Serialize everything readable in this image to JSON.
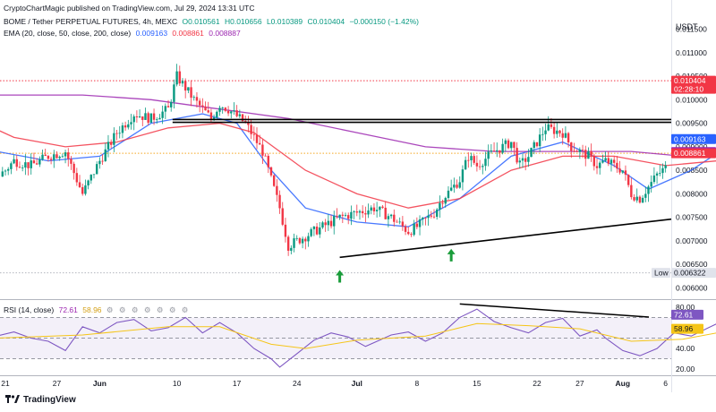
{
  "header": {
    "publisher": "CryptoChartMagic published on TradingView.com, Jul 29, 2024 13:31 UTC",
    "symbol": "BOME / Tether PERPETUAL FUTURES, 4h, MEXC",
    "ohlc": {
      "o": "O0.010561",
      "h": "H0.010656",
      "l": "L0.010389",
      "c": "C0.010404",
      "chg": "−0.000150 (−1.42%)"
    },
    "ema_label": "EMA (20, close, 50, close, 200, close)",
    "ema_values": [
      "0.009163",
      "0.008861",
      "0.008887"
    ],
    "rsi_label": "RSI (14, close)",
    "rsi_values": [
      "72.61",
      "58.96"
    ]
  },
  "footer": {
    "brand": "TradingView"
  },
  "chart_data": {
    "type": "candlestick",
    "symbol": "BOME/USDT",
    "timeframe": "4h",
    "currency": "USDT",
    "ylim": [
      0.0058,
      0.0117
    ],
    "y_ticks": [
      "0.011500",
      "0.011000",
      "0.010500",
      "0.010000",
      "0.009500",
      "0.009000",
      "0.008500",
      "0.008000",
      "0.007500",
      "0.007000",
      "0.006500",
      "0.006000"
    ],
    "x_ticks": [
      {
        "label": "21",
        "day": 21
      },
      {
        "label": "27",
        "day": 27
      },
      {
        "label": "Jun",
        "day": 32
      },
      {
        "label": "10",
        "day": 41
      },
      {
        "label": "17",
        "day": 48
      },
      {
        "label": "24",
        "day": 55
      },
      {
        "label": "Jul",
        "day": 62
      },
      {
        "label": "8",
        "day": 69
      },
      {
        "label": "15",
        "day": 76
      },
      {
        "label": "22",
        "day": 83
      },
      {
        "label": "27",
        "day": 88
      },
      {
        "label": "Aug",
        "day": 93
      },
      {
        "label": "6",
        "day": 98
      }
    ],
    "price_path": [
      [
        -14,
        0.011
      ],
      [
        -9,
        0.0106
      ],
      [
        -5,
        0.0099
      ],
      [
        -3,
        0.0095
      ],
      [
        0,
        0.0091
      ],
      [
        1,
        0.0093
      ],
      [
        3,
        0.0088
      ],
      [
        5,
        0.0089
      ],
      [
        6,
        0.009
      ],
      [
        7,
        0.0092
      ],
      [
        9,
        0.0102
      ],
      [
        11,
        0.0098
      ],
      [
        12,
        0.0104
      ],
      [
        14,
        0.0103
      ],
      [
        16,
        0.0095
      ],
      [
        18,
        0.0087
      ],
      [
        19,
        0.0082
      ],
      [
        21,
        0.0085
      ],
      [
        22,
        0.0087
      ],
      [
        24,
        0.0086
      ],
      [
        26,
        0.0088
      ],
      [
        28,
        0.0089
      ],
      [
        30,
        0.008
      ],
      [
        32,
        0.0087
      ],
      [
        34,
        0.0093
      ],
      [
        36,
        0.0097
      ],
      [
        38,
        0.0096
      ],
      [
        40,
        0.0098
      ],
      [
        41,
        0.0105
      ],
      [
        43,
        0.01
      ],
      [
        45,
        0.0096
      ],
      [
        46,
        0.0099
      ],
      [
        47,
        0.0098
      ],
      [
        49,
        0.0095
      ],
      [
        51,
        0.0089
      ],
      [
        52,
        0.0083
      ],
      [
        53,
        0.0077
      ],
      [
        54,
        0.0069
      ],
      [
        56,
        0.0071
      ],
      [
        58,
        0.0073
      ],
      [
        60,
        0.0075
      ],
      [
        62,
        0.0076
      ],
      [
        64,
        0.0077
      ],
      [
        66,
        0.0075
      ],
      [
        68,
        0.0072
      ],
      [
        69,
        0.0073
      ],
      [
        71,
        0.0076
      ],
      [
        72,
        0.0079
      ],
      [
        74,
        0.0083
      ],
      [
        75,
        0.0088
      ],
      [
        76,
        0.0086
      ],
      [
        78,
        0.0089
      ],
      [
        80,
        0.0091
      ],
      [
        81,
        0.0086
      ],
      [
        82,
        0.0088
      ],
      [
        84,
        0.0094
      ],
      [
        86,
        0.0093
      ],
      [
        87,
        0.009
      ],
      [
        89,
        0.0088
      ],
      [
        90,
        0.0086
      ],
      [
        91,
        0.0087
      ],
      [
        93,
        0.0085
      ],
      [
        94,
        0.008
      ],
      [
        95,
        0.0079
      ],
      [
        97,
        0.0084
      ],
      [
        99,
        0.0087
      ],
      [
        101,
        0.0086
      ],
      [
        102,
        0.0089
      ],
      [
        104,
        0.0091
      ],
      [
        105,
        0.0094
      ],
      [
        106,
        0.0103
      ],
      [
        107,
        0.0106
      ],
      [
        108,
        0.0104
      ]
    ],
    "series": [
      {
        "name": "EMA 20",
        "color": "#2962ff",
        "last": "0.009163",
        "values": [
          [
            -14,
            0.0108
          ],
          [
            -5,
            0.01
          ],
          [
            0,
            0.0093
          ],
          [
            8,
            0.0097
          ],
          [
            14,
            0.01
          ],
          [
            20,
            0.0089
          ],
          [
            26,
            0.0087
          ],
          [
            32,
            0.0088
          ],
          [
            38,
            0.0095
          ],
          [
            44,
            0.0097
          ],
          [
            48,
            0.0095
          ],
          [
            52,
            0.0085
          ],
          [
            56,
            0.0077
          ],
          [
            62,
            0.0074
          ],
          [
            68,
            0.0073
          ],
          [
            74,
            0.0079
          ],
          [
            80,
            0.0088
          ],
          [
            86,
            0.0091
          ],
          [
            92,
            0.0086
          ],
          [
            96,
            0.0081
          ],
          [
            101,
            0.0085
          ],
          [
            106,
            0.0091
          ],
          [
            108,
            0.00916
          ]
        ]
      },
      {
        "name": "EMA 50",
        "color": "#f23645",
        "last": "0.008861",
        "values": [
          [
            -14,
            0.011
          ],
          [
            -5,
            0.0104
          ],
          [
            0,
            0.0101
          ],
          [
            10,
            0.01
          ],
          [
            16,
            0.0097
          ],
          [
            22,
            0.0092
          ],
          [
            28,
            0.009
          ],
          [
            34,
            0.0091
          ],
          [
            40,
            0.0094
          ],
          [
            46,
            0.0095
          ],
          [
            50,
            0.0093
          ],
          [
            56,
            0.0085
          ],
          [
            62,
            0.008
          ],
          [
            68,
            0.0077
          ],
          [
            74,
            0.0079
          ],
          [
            80,
            0.0085
          ],
          [
            86,
            0.0088
          ],
          [
            92,
            0.0088
          ],
          [
            98,
            0.0086
          ],
          [
            104,
            0.0087
          ],
          [
            108,
            0.00886
          ]
        ]
      },
      {
        "name": "EMA 200",
        "color": "#9c27b0",
        "last": "0.008887",
        "values": [
          [
            -14,
            0.0113
          ],
          [
            -5,
            0.011
          ],
          [
            4,
            0.0104
          ],
          [
            12,
            0.0102
          ],
          [
            20,
            0.0101
          ],
          [
            30,
            0.0101
          ],
          [
            38,
            0.01
          ],
          [
            46,
            0.0098
          ],
          [
            54,
            0.0096
          ],
          [
            62,
            0.0093
          ],
          [
            70,
            0.009
          ],
          [
            78,
            0.0089
          ],
          [
            86,
            0.0089
          ],
          [
            94,
            0.0089
          ],
          [
            100,
            0.0088
          ],
          [
            108,
            0.00889
          ]
        ]
      }
    ],
    "horizontal_lines": [
      {
        "name": "resistance-upper",
        "value": 0.00958
      },
      {
        "name": "resistance-lower",
        "value": 0.00952
      }
    ],
    "trendlines": [
      {
        "name": "rising-support",
        "from": [
          60,
          0.00665
        ],
        "to": [
          140,
          0.00833
        ]
      }
    ],
    "reference_lines": [
      {
        "name": "last-price",
        "value": 0.010404,
        "color": "#f23645",
        "style": "dotted"
      },
      {
        "name": "ema50-level",
        "value": 0.008861,
        "color": "#f5a623",
        "style": "dotted"
      }
    ],
    "markers": [
      {
        "type": "arrow-up",
        "day": 60,
        "value": 0.00638
      },
      {
        "type": "arrow-up",
        "day": 73,
        "value": 0.00683
      },
      {
        "type": "arrow-up",
        "day": 110,
        "value": 0.0074
      }
    ],
    "price_labels": [
      {
        "text": "0.010404",
        "value": 0.010404,
        "bg": "#f23645",
        "extra": "02:28:10"
      },
      {
        "text": "0.009163",
        "value": 0.009163,
        "bg": "#2962ff"
      },
      {
        "text": "0.008887",
        "value": 0.008887,
        "bg": "#9c27b0"
      },
      {
        "text": "0.008861",
        "value": 0.008861,
        "bg": "#f23645"
      },
      {
        "text": "0.006322",
        "value": 0.006322,
        "bg": "#e0e3eb",
        "fg": "#131722",
        "prefix": "Low"
      }
    ],
    "rsi": {
      "ylim": [
        15,
        85
      ],
      "y_ticks": [
        "80.00",
        "60.00",
        "40.00",
        "20.00"
      ],
      "bands": [
        70,
        30
      ],
      "rsi_path": [
        [
          -14,
          58
        ],
        [
          -9,
          50
        ],
        [
          -5,
          53
        ],
        [
          -2,
          48
        ],
        [
          0,
          62
        ],
        [
          2,
          45
        ],
        [
          4,
          38
        ],
        [
          6,
          41
        ],
        [
          8,
          32
        ],
        [
          10,
          52
        ],
        [
          12,
          56
        ],
        [
          14,
          49
        ],
        [
          16,
          42
        ],
        [
          18,
          38
        ],
        [
          20,
          52
        ],
        [
          22,
          56
        ],
        [
          24,
          50
        ],
        [
          26,
          47
        ],
        [
          28,
          38
        ],
        [
          30,
          61
        ],
        [
          32,
          55
        ],
        [
          34,
          65
        ],
        [
          36,
          68
        ],
        [
          38,
          57
        ],
        [
          40,
          60
        ],
        [
          42,
          70
        ],
        [
          44,
          55
        ],
        [
          46,
          65
        ],
        [
          48,
          55
        ],
        [
          50,
          40
        ],
        [
          52,
          30
        ],
        [
          53,
          22
        ],
        [
          55,
          35
        ],
        [
          57,
          48
        ],
        [
          59,
          55
        ],
        [
          61,
          51
        ],
        [
          63,
          42
        ],
        [
          66,
          53
        ],
        [
          68,
          56
        ],
        [
          70,
          47
        ],
        [
          72,
          55
        ],
        [
          74,
          70
        ],
        [
          76,
          78
        ],
        [
          78,
          66
        ],
        [
          80,
          60
        ],
        [
          82,
          55
        ],
        [
          84,
          65
        ],
        [
          86,
          69
        ],
        [
          88,
          52
        ],
        [
          90,
          58
        ],
        [
          91,
          50
        ],
        [
          93,
          38
        ],
        [
          95,
          33
        ],
        [
          97,
          40
        ],
        [
          99,
          55
        ],
        [
          101,
          52
        ],
        [
          103,
          60
        ],
        [
          105,
          68
        ],
        [
          107,
          78
        ],
        [
          108,
          72.61
        ]
      ],
      "signal_path": [
        [
          -14,
          56
        ],
        [
          -5,
          52
        ],
        [
          4,
          46
        ],
        [
          10,
          47
        ],
        [
          20,
          50
        ],
        [
          30,
          53
        ],
        [
          40,
          61
        ],
        [
          46,
          61
        ],
        [
          52,
          44
        ],
        [
          56,
          40
        ],
        [
          62,
          48
        ],
        [
          70,
          52
        ],
        [
          76,
          64
        ],
        [
          82,
          62
        ],
        [
          88,
          59
        ],
        [
          94,
          47
        ],
        [
          100,
          49
        ],
        [
          104,
          55
        ],
        [
          108,
          58.96
        ]
      ],
      "trendline": {
        "from": [
          74,
          83
        ],
        "to": [
          140,
          45
        ]
      },
      "price_labels": [
        {
          "text": "72.61",
          "value": 72.61,
          "bg": "#7e57c2"
        },
        {
          "text": "58.96",
          "value": 58.96,
          "bg": "#f5c518",
          "fg": "#131722"
        }
      ]
    }
  }
}
